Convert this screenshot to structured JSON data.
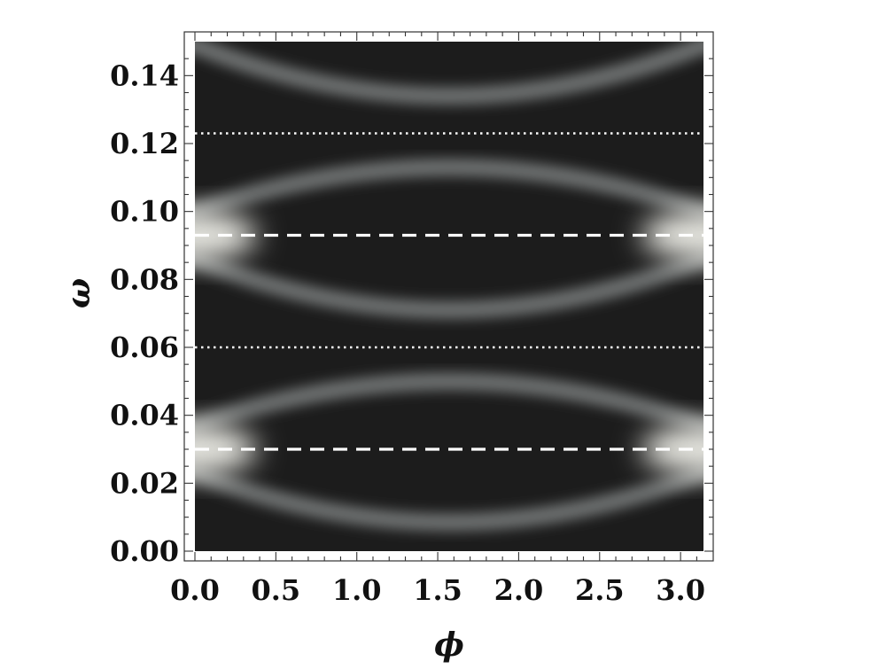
{
  "chart_data": {
    "type": "heatmap",
    "title": "",
    "xlabel": "ϕ",
    "ylabel": "ω",
    "xlim": [
      0,
      3.1416
    ],
    "ylim": [
      0,
      0.15
    ],
    "x_ticks": [
      "0.0",
      "0.5",
      "1.0",
      "1.5",
      "2.0",
      "2.5",
      "3.0"
    ],
    "y_ticks": [
      "0.00",
      "0.02",
      "0.04",
      "0.06",
      "0.08",
      "0.10",
      "0.12",
      "0.14"
    ],
    "x_tick_values": [
      0,
      0.5,
      1.0,
      1.5,
      2.0,
      2.5,
      3.0
    ],
    "y_tick_values": [
      0,
      0.02,
      0.04,
      0.06,
      0.08,
      0.1,
      0.12,
      0.14
    ],
    "colormap": "grayscale",
    "background_color": "#1c1c1c",
    "highlight_color": "#f2f2ec",
    "bright_spots": [
      {
        "x": 0,
        "y": 0.03
      },
      {
        "x": 3.1416,
        "y": 0.03
      },
      {
        "x": 0,
        "y": 0.093
      },
      {
        "x": 3.1416,
        "y": 0.093
      }
    ],
    "bands": [
      {
        "edge_y": 0.023,
        "center_y": 0.0085,
        "curvature": -1
      },
      {
        "edge_y": 0.037,
        "center_y": 0.05,
        "curvature": 1
      },
      {
        "edge_y": 0.086,
        "center_y": 0.071,
        "curvature": -1
      },
      {
        "edge_y": 0.1,
        "center_y": 0.113,
        "curvature": 1
      },
      {
        "edge_y": 0.149,
        "center_y": 0.134,
        "curvature": -1
      }
    ],
    "reference_lines": [
      {
        "y": 0.03,
        "style": "dashed",
        "color": "#ffffff"
      },
      {
        "y": 0.06,
        "style": "dotted",
        "color": "#ffffff"
      },
      {
        "y": 0.093,
        "style": "dashed",
        "color": "#ffffff"
      },
      {
        "y": 0.123,
        "style": "dotted",
        "color": "#ffffff"
      }
    ],
    "grid": false,
    "legend": "none"
  }
}
